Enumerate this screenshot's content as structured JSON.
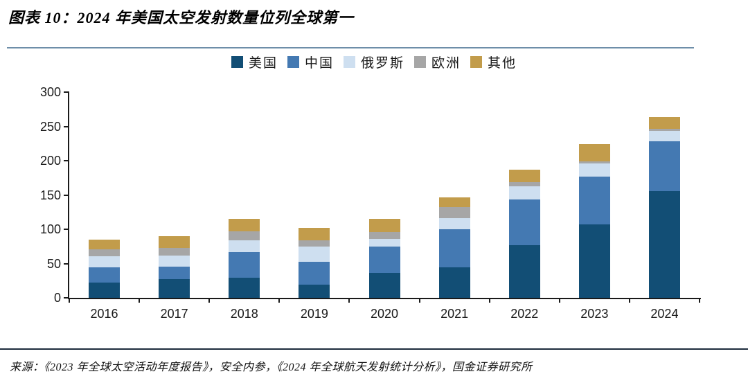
{
  "title": "图表 10：2024 年美国太空发射数量位列全球第一",
  "footer": {
    "source": "来源：《2023 年全球太空活动年度报告》，安全内参，《2024 年全球航天发射统计分析》，国金证券研究所"
  },
  "colors": {
    "title_underline": "#6E8EA9",
    "footer_divider": "#1C2B3C",
    "axis": "#1A1A1A"
  },
  "chart_data": {
    "type": "bar",
    "stacked": true,
    "title": "",
    "xlabel": "",
    "ylabel": "",
    "categories": [
      "2016",
      "2017",
      "2018",
      "2019",
      "2020",
      "2021",
      "2022",
      "2023",
      "2024"
    ],
    "series": [
      {
        "name": "美国",
        "color": "#124E75",
        "values": [
          22,
          27,
          29,
          19,
          36,
          44,
          77,
          107,
          156
        ]
      },
      {
        "name": "中国",
        "color": "#4479B2",
        "values": [
          22,
          18,
          38,
          34,
          39,
          56,
          66,
          70,
          72
        ]
      },
      {
        "name": "俄罗斯",
        "color": "#CEDFF0",
        "values": [
          17,
          17,
          17,
          22,
          11,
          16,
          20,
          19,
          15
        ]
      },
      {
        "name": "欧洲",
        "color": "#A6A6A6",
        "values": [
          10,
          11,
          13,
          9,
          10,
          16,
          6,
          3,
          4
        ]
      },
      {
        "name": "其他",
        "color": "#C29C4B",
        "values": [
          14,
          17,
          18,
          18,
          19,
          15,
          18,
          25,
          17
        ]
      }
    ],
    "totals": [
      85,
      90,
      115,
      102,
      115,
      147,
      187,
      224,
      264
    ],
    "ylim": [
      0,
      300
    ],
    "yticks": [
      0,
      50,
      100,
      150,
      200,
      250,
      300
    ],
    "legend_position": "top-center",
    "grid": false
  }
}
